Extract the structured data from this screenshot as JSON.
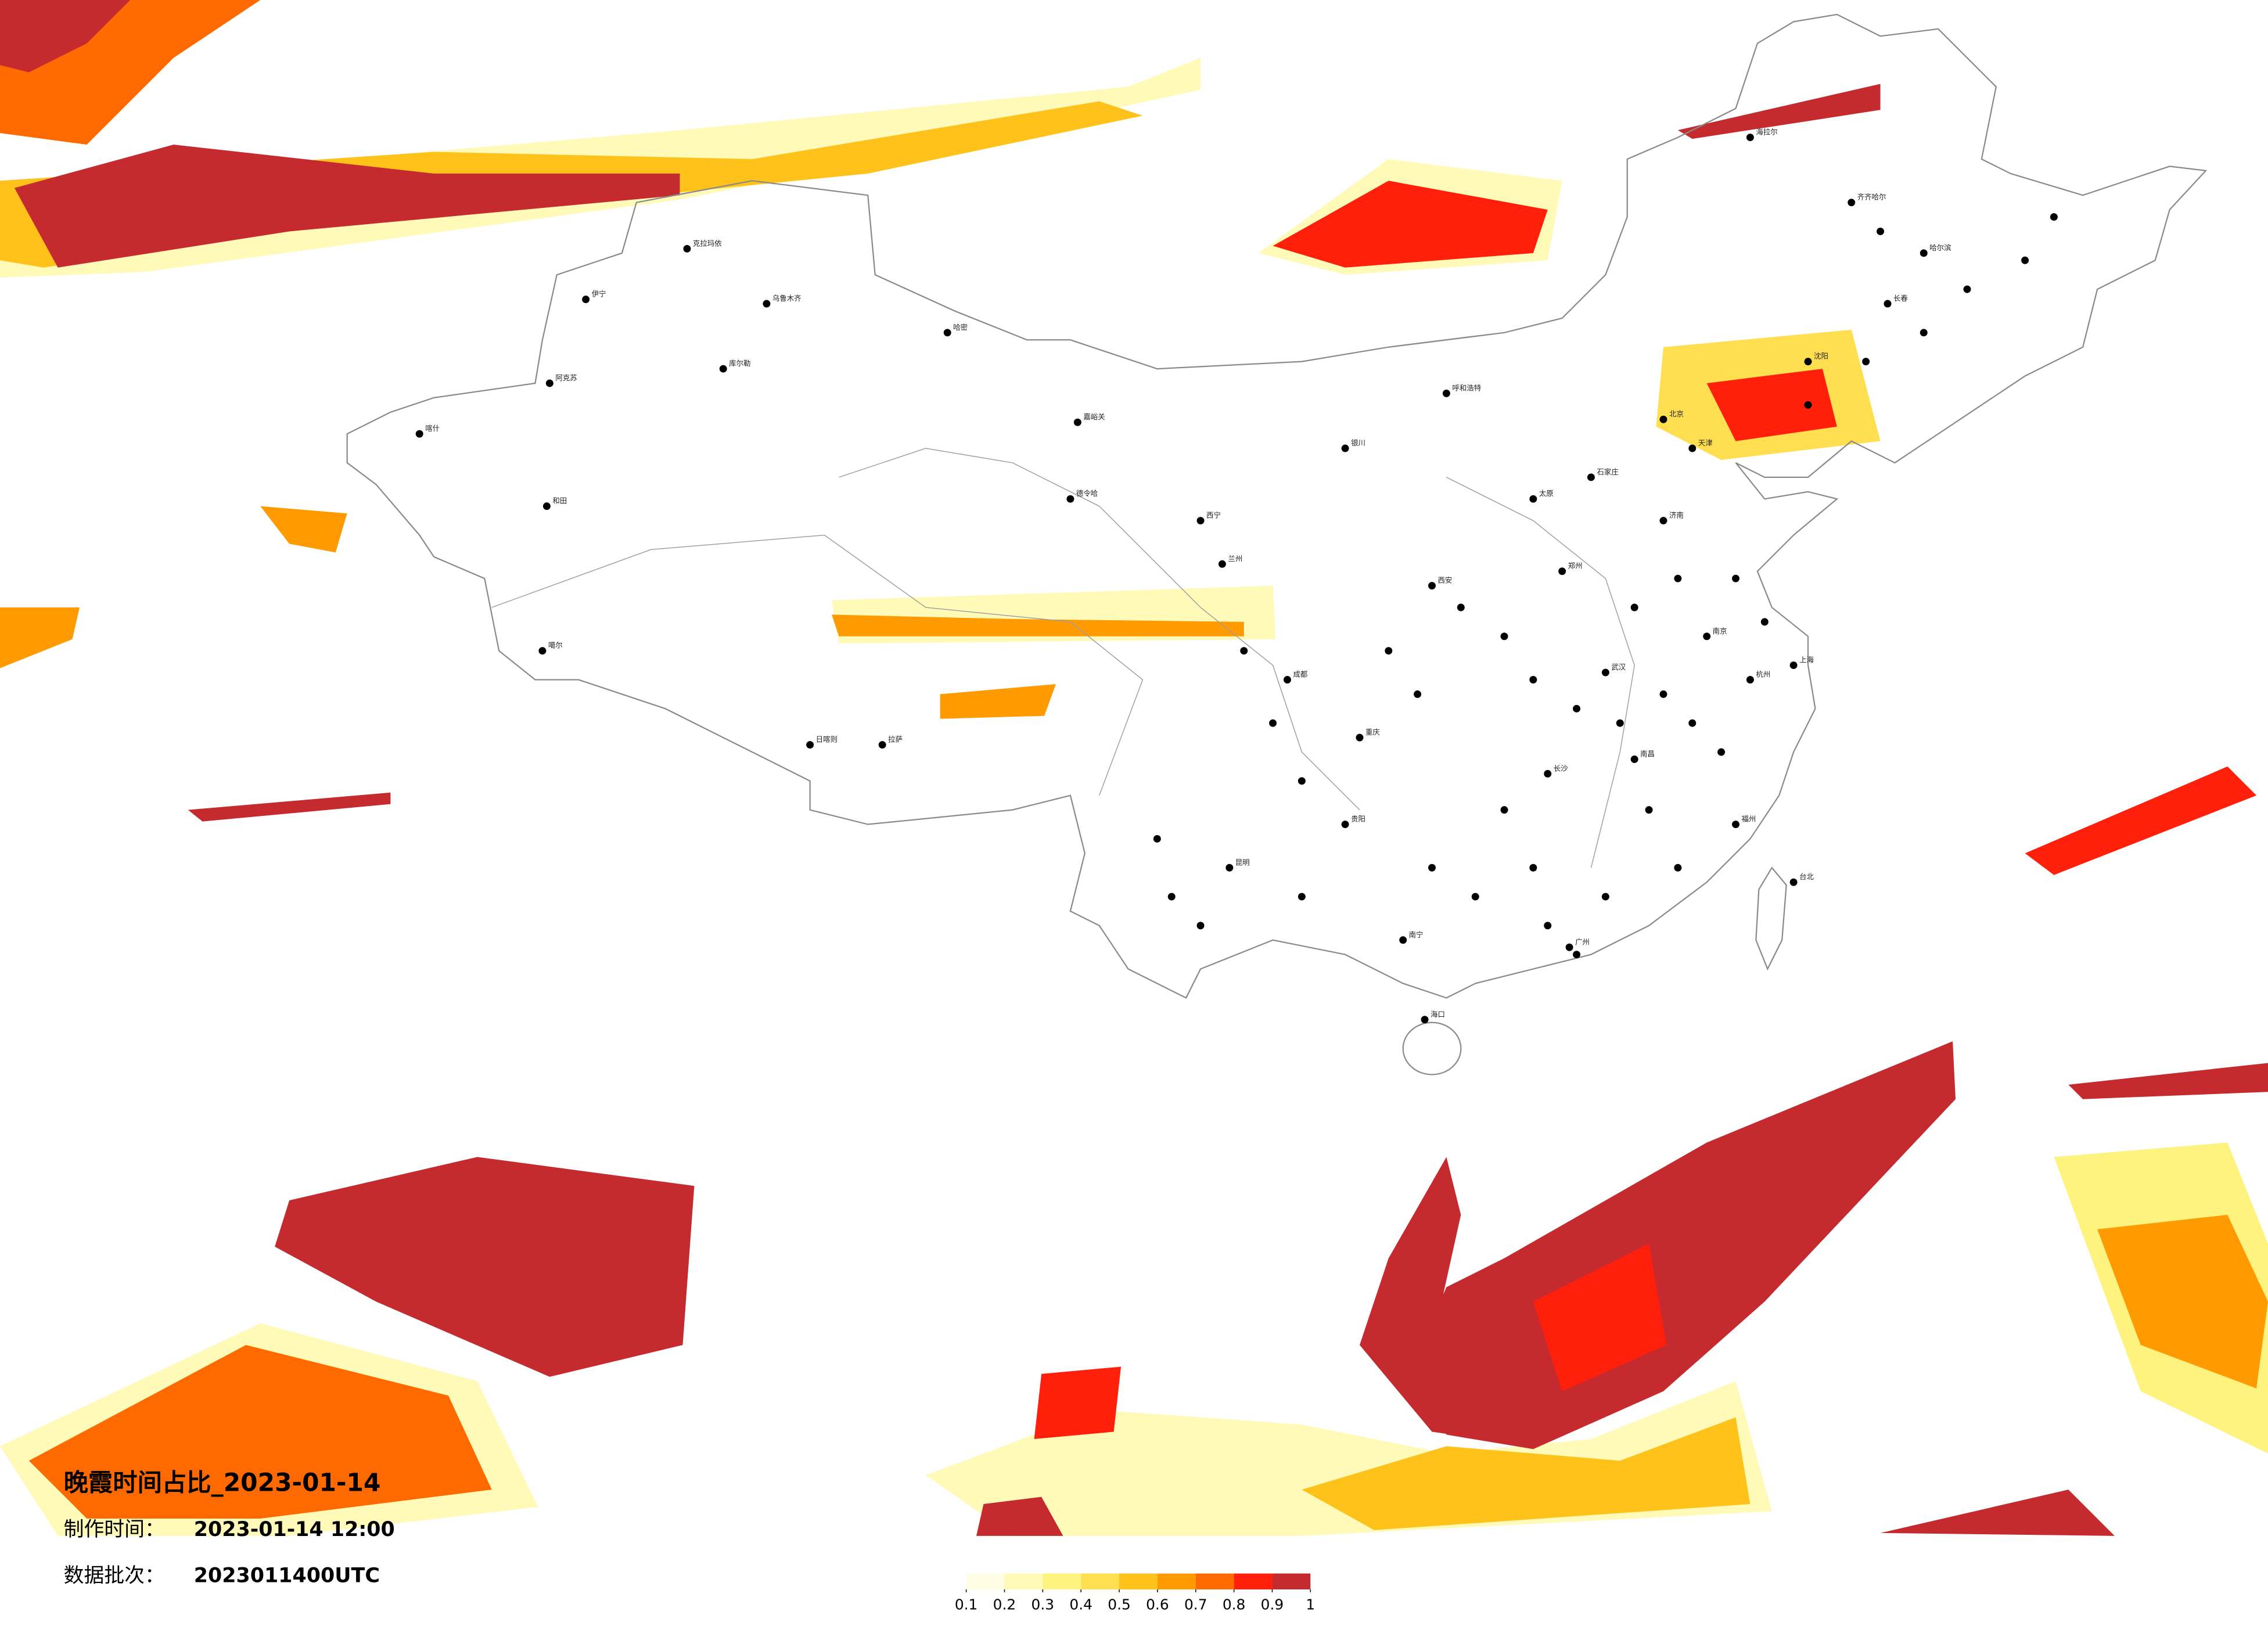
{
  "title": "晚霞时间占比_2023-01-14",
  "info": [
    {
      "label": "制作时间：",
      "value": "2023-01-14 12:00"
    },
    {
      "label": "数据批次：",
      "value": "2023011400UTC"
    }
  ],
  "legend": {
    "ticks": [
      0.1,
      0.2,
      0.3,
      0.4,
      0.5,
      0.6,
      0.7,
      0.8,
      0.9,
      1
    ],
    "colors": [
      "#fffde3",
      "#fffab8",
      "#fff380",
      "#ffdf50",
      "#ffc21a",
      "#ff9a00",
      "#ff6a00",
      "#ff1f0a",
      "#c52a2e"
    ]
  },
  "cities": [
    "克拉玛依",
    "乌鲁木齐",
    "伊宁",
    "阿克苏",
    "喀什",
    "和田",
    "哈密",
    "库尔勒",
    "嘉峪关",
    "德令哈",
    "西宁",
    "兰州",
    "银川",
    "呼和浩特",
    "北京",
    "天津",
    "石家庄",
    "太原",
    "济南",
    "郑州",
    "西安",
    "成都",
    "重庆",
    "拉萨",
    "日喀则",
    "昆明",
    "南宁",
    "广州",
    "武汉",
    "长沙",
    "南昌",
    "杭州",
    "南京",
    "上海",
    "福州",
    "沈阳",
    "长春",
    "哈尔滨",
    "海拉尔",
    "齐齐哈尔",
    "台北",
    "海口",
    "贵阳",
    "噶尔"
  ]
}
